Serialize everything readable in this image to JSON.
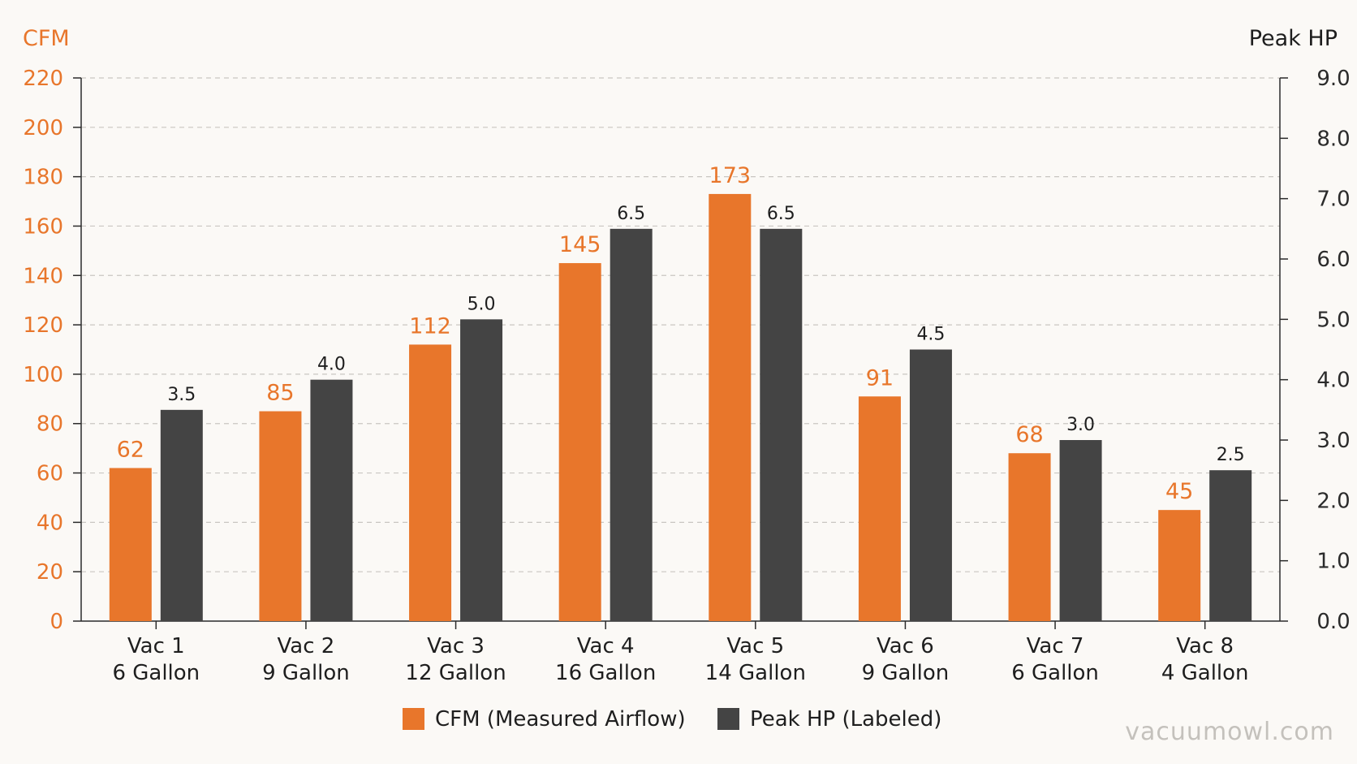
{
  "chart_data": {
    "type": "bar",
    "categories": [
      [
        "Vac 1",
        "6 Gallon"
      ],
      [
        "Vac 2",
        "9 Gallon"
      ],
      [
        "Vac 3",
        "12 Gallon"
      ],
      [
        "Vac 4",
        "16 Gallon"
      ],
      [
        "Vac 5",
        "14 Gallon"
      ],
      [
        "Vac 6",
        "9 Gallon"
      ],
      [
        "Vac 7",
        "6 Gallon"
      ],
      [
        "Vac 8",
        "4 Gallon"
      ]
    ],
    "series": [
      {
        "name": "CFM (Measured Airflow)",
        "axis": "left",
        "color": "#e8762b",
        "values": [
          62,
          85,
          112,
          145,
          173,
          91,
          68,
          45
        ],
        "labels": [
          "62",
          "85",
          "112",
          "145",
          "173",
          "91",
          "68",
          "45"
        ]
      },
      {
        "name": "Peak HP (Labeled)",
        "axis": "right",
        "color": "#444444",
        "values": [
          3.5,
          4.0,
          5.0,
          6.5,
          6.5,
          4.5,
          3.0,
          2.5
        ],
        "labels": [
          "3.5",
          "4.0",
          "5.0",
          "6.5",
          "6.5",
          "4.5",
          "3.0",
          "2.5"
        ]
      }
    ],
    "y_left": {
      "label": "CFM",
      "lim": [
        0,
        220
      ],
      "ticks": [
        "0",
        "20",
        "40",
        "60",
        "80",
        "100",
        "120",
        "140",
        "160",
        "180",
        "200",
        "220"
      ]
    },
    "y_right": {
      "label": "Peak HP",
      "lim": [
        0,
        9
      ],
      "ticks": [
        "0.0",
        "1.0",
        "2.0",
        "3.0",
        "4.0",
        "5.0",
        "6.0",
        "7.0",
        "8.0",
        "9.0"
      ]
    },
    "grid": true,
    "legend_position": "bottom-center"
  },
  "watermark": "vacuumowl.com",
  "colors": {
    "background": "#fbf9f6",
    "grid": "#c9c6c1",
    "axis": "#2b2b2b"
  }
}
